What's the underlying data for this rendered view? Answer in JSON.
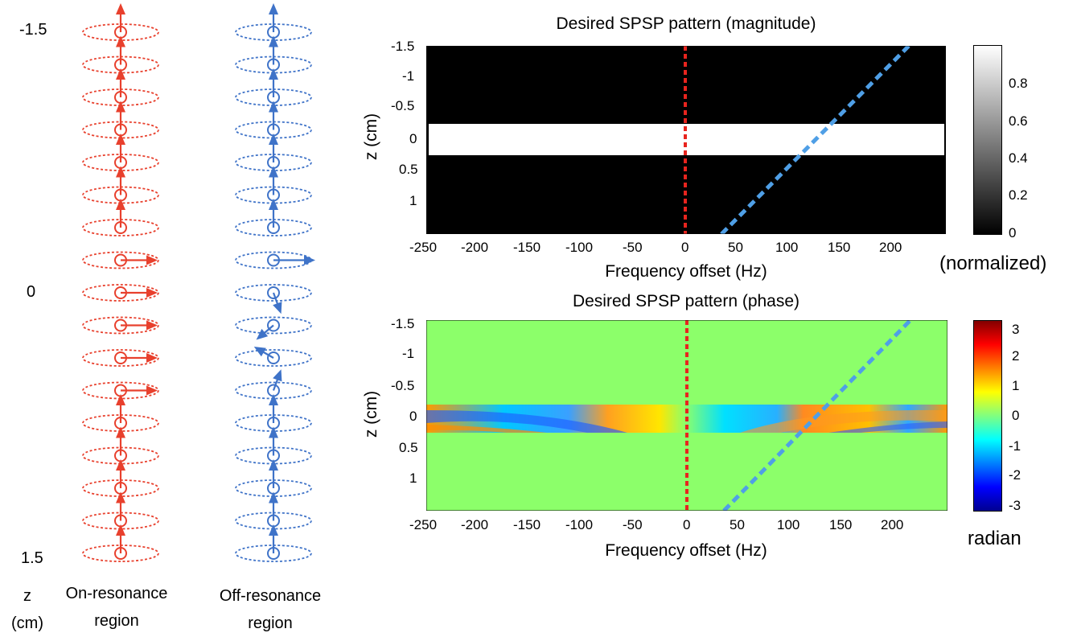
{
  "left_panel": {
    "z_ticks": [
      "-1.5",
      "0",
      "1.5"
    ],
    "z_label": "z",
    "z_unit": "(cm)",
    "on_resonance": {
      "line1": "On-resonance",
      "line2": "region",
      "color": "#e8402d"
    },
    "off_resonance": {
      "line1": "Off-resonance",
      "line2": "region",
      "color": "#3f73c8"
    },
    "spin_count": 17,
    "on_resonance_tilted_rows": [
      7,
      8,
      9,
      10,
      11
    ],
    "off_resonance_tilted_rows": [
      7,
      8,
      9,
      10,
      11
    ]
  },
  "magnitude_plot": {
    "title": "Desired SPSP pattern (magnitude)",
    "xlabel": "Frequency offset (Hz)",
    "ylabel": "z (cm)",
    "x_ticks": [
      "-250",
      "-200",
      "-150",
      "-100",
      "-50",
      "0",
      "50",
      "100",
      "150",
      "200"
    ],
    "y_ticks": [
      "-1.5",
      "-1",
      "-0.5",
      "0",
      "0.5",
      "1"
    ],
    "colorbar_ticks": [
      "0.8",
      "0.6",
      "0.4",
      "0.2",
      "0"
    ],
    "colorbar_unit": "(normalized)"
  },
  "phase_plot": {
    "title": "Desired SPSP pattern (phase)",
    "xlabel": "Frequency offset (Hz)",
    "ylabel": "z (cm)",
    "x_ticks": [
      "-250",
      "-200",
      "-150",
      "-100",
      "-50",
      "0",
      "50",
      "100",
      "150",
      "200"
    ],
    "y_ticks": [
      "-1.5",
      "-1",
      "-0.5",
      "0",
      "0.5",
      "1"
    ],
    "colorbar_ticks": [
      "3",
      "2",
      "1",
      "0",
      "-1",
      "-2",
      "-3"
    ],
    "colorbar_unit": "radian"
  },
  "colors": {
    "on_resonance_line": "#e8241e",
    "off_resonance_line": "#4f9fe6",
    "phase_background": "#8cff6a"
  }
}
